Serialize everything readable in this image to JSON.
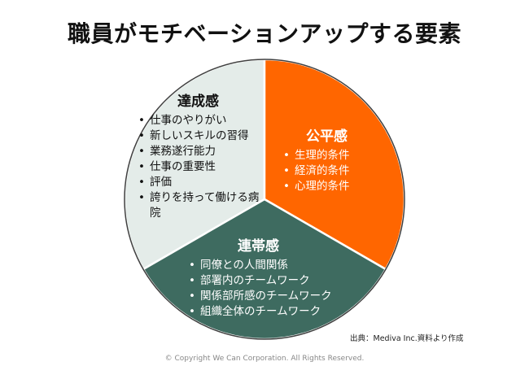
{
  "title": "職員がモチベーションアップする要素",
  "colors": {
    "achievement": "#e4ece9",
    "fairness": "#ff6600",
    "solidarity": "#3e6b60",
    "border": "#404040"
  },
  "segments": {
    "achievement": {
      "title": "達成感",
      "items": [
        "仕事のやりがい",
        "新しいスキルの習得",
        "業務遂行能力",
        "仕事の重要性",
        "評価",
        "誇りを持って働ける病院"
      ]
    },
    "fairness": {
      "title": "公平感",
      "items": [
        "生理的条件",
        "経済的条件",
        "心理的条件"
      ]
    },
    "solidarity": {
      "title": "連帯感",
      "items": [
        "同僚との人間関係",
        "部署内のチームワーク",
        "関係部所感のチームワーク",
        "組織全体のチームワーク"
      ]
    }
  },
  "source": "出典：Mediva Inc.資料より作成",
  "copyright": "© Copyright  We Can Corporation. All Rights Reserved."
}
